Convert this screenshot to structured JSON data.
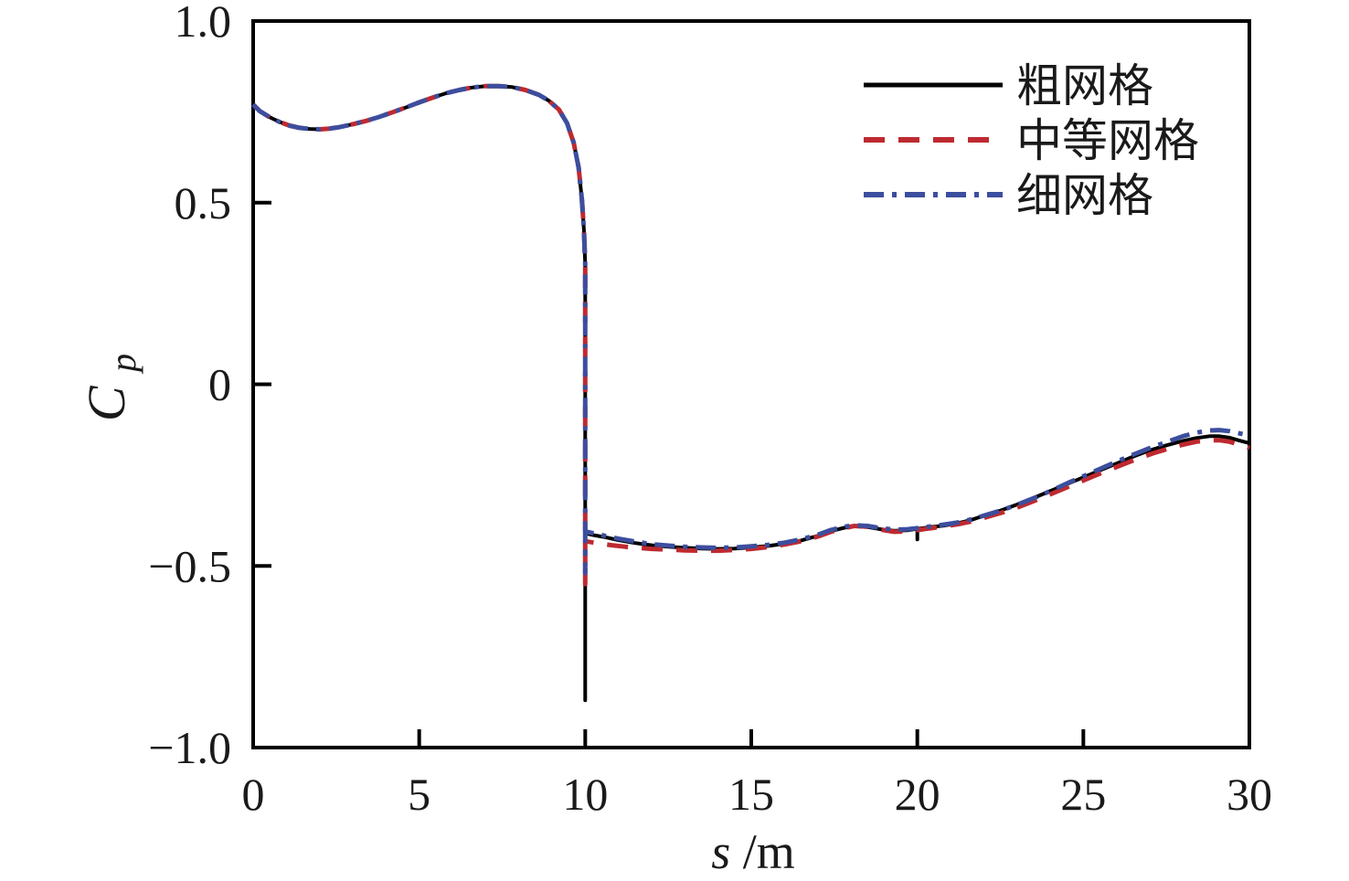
{
  "figure": {
    "background": "#ffffff",
    "frame_color": "#000000"
  },
  "chart_data": {
    "type": "line",
    "title": "",
    "xlabel": {
      "italic": "s",
      "rest": "/m"
    },
    "ylabel": {
      "main": "C",
      "sub": "p"
    },
    "xlim": [
      0,
      30
    ],
    "ylim": [
      -1.0,
      1.0
    ],
    "grid": false,
    "x_ticks": [
      {
        "v": 0,
        "label": "0"
      },
      {
        "v": 5,
        "label": "5"
      },
      {
        "v": 10,
        "label": "10"
      },
      {
        "v": 15,
        "label": "15"
      },
      {
        "v": 20,
        "label": "20"
      },
      {
        "v": 25,
        "label": "25"
      },
      {
        "v": 30,
        "label": "30"
      }
    ],
    "y_ticks": [
      {
        "v": 1.0,
        "label": "1.0"
      },
      {
        "v": 0.5,
        "label": "0.5"
      },
      {
        "v": 0,
        "label": "0"
      },
      {
        "v": -0.5,
        "label": "−0.5"
      },
      {
        "v": -1.0,
        "label": "−1.0"
      }
    ],
    "legend": {
      "position": "top-right"
    },
    "series": [
      {
        "key": "coarse-grid",
        "name": "粗网格",
        "color": "#000000",
        "style": "solid",
        "width": 4,
        "dash": null,
        "points": [
          [
            0,
            0.77
          ],
          [
            0.2,
            0.752
          ],
          [
            0.5,
            0.735
          ],
          [
            0.8,
            0.722
          ],
          [
            1.1,
            0.712
          ],
          [
            1.4,
            0.706
          ],
          [
            1.7,
            0.703
          ],
          [
            2.0,
            0.702
          ],
          [
            2.3,
            0.704
          ],
          [
            2.6,
            0.708
          ],
          [
            3.0,
            0.716
          ],
          [
            3.4,
            0.725
          ],
          [
            3.8,
            0.736
          ],
          [
            4.2,
            0.749
          ],
          [
            4.6,
            0.762
          ],
          [
            5.0,
            0.776
          ],
          [
            5.4,
            0.789
          ],
          [
            5.8,
            0.801
          ],
          [
            6.2,
            0.81
          ],
          [
            6.6,
            0.817
          ],
          [
            7.0,
            0.821
          ],
          [
            7.4,
            0.821
          ],
          [
            7.8,
            0.818
          ],
          [
            8.2,
            0.81
          ],
          [
            8.6,
            0.797
          ],
          [
            8.9,
            0.781
          ],
          [
            9.2,
            0.757
          ],
          [
            9.45,
            0.719
          ],
          [
            9.65,
            0.666
          ],
          [
            9.8,
            0.597
          ],
          [
            9.9,
            0.508
          ],
          [
            9.96,
            0.425
          ],
          [
            10.0,
            0.33
          ],
          [
            10.0,
            -0.87
          ],
          [
            10.0,
            -0.41
          ],
          [
            10.3,
            -0.416
          ],
          [
            10.6,
            -0.421
          ],
          [
            11.0,
            -0.429
          ],
          [
            11.5,
            -0.437
          ],
          [
            12.0,
            -0.443
          ],
          [
            12.5,
            -0.447
          ],
          [
            13.0,
            -0.45
          ],
          [
            13.5,
            -0.452
          ],
          [
            14.0,
            -0.453
          ],
          [
            14.5,
            -0.452
          ],
          [
            15.0,
            -0.449
          ],
          [
            15.5,
            -0.445
          ],
          [
            16.0,
            -0.439
          ],
          [
            16.5,
            -0.43
          ],
          [
            17.0,
            -0.417
          ],
          [
            17.4,
            -0.404
          ],
          [
            17.8,
            -0.395
          ],
          [
            18.1,
            -0.391
          ],
          [
            18.5,
            -0.393
          ],
          [
            18.9,
            -0.399
          ],
          [
            19.3,
            -0.403
          ],
          [
            19.7,
            -0.402
          ],
          [
            20.0,
            -0.398
          ],
          [
            20.0,
            -0.427
          ],
          [
            20.0,
            -0.398
          ],
          [
            20.4,
            -0.393
          ],
          [
            20.8,
            -0.389
          ],
          [
            21.2,
            -0.383
          ],
          [
            21.6,
            -0.374
          ],
          [
            22.0,
            -0.362
          ],
          [
            22.5,
            -0.348
          ],
          [
            23.0,
            -0.331
          ],
          [
            23.5,
            -0.313
          ],
          [
            24.0,
            -0.294
          ],
          [
            24.5,
            -0.275
          ],
          [
            25.0,
            -0.256
          ],
          [
            25.5,
            -0.237
          ],
          [
            26.0,
            -0.218
          ],
          [
            26.5,
            -0.199
          ],
          [
            27.0,
            -0.182
          ],
          [
            27.5,
            -0.168
          ],
          [
            28.0,
            -0.156
          ],
          [
            28.4,
            -0.148
          ],
          [
            28.8,
            -0.143
          ],
          [
            29.1,
            -0.143
          ],
          [
            29.4,
            -0.147
          ],
          [
            29.7,
            -0.155
          ],
          [
            30.0,
            -0.162
          ]
        ]
      },
      {
        "key": "medium-grid",
        "name": "中等网格",
        "color": "#be2a30",
        "style": "dashed",
        "width": 5,
        "dash": [
          23,
          15
        ],
        "points": [
          [
            0,
            0.77
          ],
          [
            0.2,
            0.752
          ],
          [
            0.5,
            0.735
          ],
          [
            0.8,
            0.722
          ],
          [
            1.1,
            0.712
          ],
          [
            1.4,
            0.706
          ],
          [
            1.7,
            0.703
          ],
          [
            2.0,
            0.702
          ],
          [
            2.3,
            0.704
          ],
          [
            2.6,
            0.708
          ],
          [
            3.0,
            0.716
          ],
          [
            3.4,
            0.725
          ],
          [
            3.8,
            0.736
          ],
          [
            4.2,
            0.749
          ],
          [
            4.6,
            0.762
          ],
          [
            5.0,
            0.776
          ],
          [
            5.4,
            0.789
          ],
          [
            5.8,
            0.801
          ],
          [
            6.2,
            0.81
          ],
          [
            6.6,
            0.817
          ],
          [
            7.0,
            0.821
          ],
          [
            7.4,
            0.821
          ],
          [
            7.8,
            0.818
          ],
          [
            8.2,
            0.81
          ],
          [
            8.6,
            0.797
          ],
          [
            8.9,
            0.781
          ],
          [
            9.2,
            0.757
          ],
          [
            9.45,
            0.719
          ],
          [
            9.65,
            0.666
          ],
          [
            9.8,
            0.597
          ],
          [
            9.9,
            0.508
          ],
          [
            9.96,
            0.425
          ],
          [
            10.0,
            0.33
          ],
          [
            10.0,
            -0.55
          ],
          [
            10.0,
            -0.432
          ],
          [
            10.4,
            -0.438
          ],
          [
            10.8,
            -0.443
          ],
          [
            11.2,
            -0.447
          ],
          [
            11.6,
            -0.45
          ],
          [
            12.0,
            -0.453
          ],
          [
            12.5,
            -0.455
          ],
          [
            13.0,
            -0.457
          ],
          [
            13.5,
            -0.458
          ],
          [
            14.0,
            -0.458
          ],
          [
            14.5,
            -0.456
          ],
          [
            15.0,
            -0.453
          ],
          [
            15.5,
            -0.448
          ],
          [
            16.0,
            -0.441
          ],
          [
            16.5,
            -0.432
          ],
          [
            17.0,
            -0.419
          ],
          [
            17.4,
            -0.406
          ],
          [
            17.8,
            -0.396
          ],
          [
            18.1,
            -0.39
          ],
          [
            18.5,
            -0.392
          ],
          [
            18.9,
            -0.4
          ],
          [
            19.3,
            -0.406
          ],
          [
            19.7,
            -0.405
          ],
          [
            20.1,
            -0.4
          ],
          [
            20.5,
            -0.395
          ],
          [
            20.9,
            -0.39
          ],
          [
            21.3,
            -0.384
          ],
          [
            21.7,
            -0.376
          ],
          [
            22.1,
            -0.365
          ],
          [
            22.6,
            -0.352
          ],
          [
            23.1,
            -0.336
          ],
          [
            23.6,
            -0.318
          ],
          [
            24.1,
            -0.299
          ],
          [
            24.6,
            -0.28
          ],
          [
            25.1,
            -0.261
          ],
          [
            25.6,
            -0.242
          ],
          [
            26.1,
            -0.224
          ],
          [
            26.6,
            -0.206
          ],
          [
            27.1,
            -0.19
          ],
          [
            27.6,
            -0.176
          ],
          [
            28.0,
            -0.166
          ],
          [
            28.4,
            -0.158
          ],
          [
            28.8,
            -0.154
          ],
          [
            29.1,
            -0.154
          ],
          [
            29.4,
            -0.158
          ],
          [
            29.7,
            -0.166
          ],
          [
            30.0,
            -0.175
          ]
        ]
      },
      {
        "key": "fine-grid",
        "name": "细网格",
        "color": "#3c4e9e",
        "style": "dashdot",
        "width": 5,
        "dash": [
          22,
          9,
          5,
          9
        ],
        "points": [
          [
            0,
            0.77
          ],
          [
            0.2,
            0.752
          ],
          [
            0.5,
            0.735
          ],
          [
            0.8,
            0.722
          ],
          [
            1.1,
            0.712
          ],
          [
            1.4,
            0.706
          ],
          [
            1.7,
            0.703
          ],
          [
            2.0,
            0.702
          ],
          [
            2.3,
            0.704
          ],
          [
            2.6,
            0.708
          ],
          [
            3.0,
            0.716
          ],
          [
            3.4,
            0.725
          ],
          [
            3.8,
            0.736
          ],
          [
            4.2,
            0.749
          ],
          [
            4.6,
            0.762
          ],
          [
            5.0,
            0.776
          ],
          [
            5.4,
            0.789
          ],
          [
            5.8,
            0.801
          ],
          [
            6.2,
            0.81
          ],
          [
            6.6,
            0.817
          ],
          [
            7.0,
            0.821
          ],
          [
            7.4,
            0.821
          ],
          [
            7.8,
            0.818
          ],
          [
            8.2,
            0.81
          ],
          [
            8.6,
            0.797
          ],
          [
            8.9,
            0.781
          ],
          [
            9.2,
            0.757
          ],
          [
            9.45,
            0.719
          ],
          [
            9.65,
            0.666
          ],
          [
            9.8,
            0.597
          ],
          [
            9.9,
            0.508
          ],
          [
            9.96,
            0.425
          ],
          [
            10.0,
            0.33
          ],
          [
            10.0,
            -0.52
          ],
          [
            10.0,
            -0.405
          ],
          [
            10.3,
            -0.411
          ],
          [
            10.6,
            -0.417
          ],
          [
            11.0,
            -0.425
          ],
          [
            11.5,
            -0.433
          ],
          [
            12.0,
            -0.44
          ],
          [
            12.5,
            -0.444
          ],
          [
            13.0,
            -0.447
          ],
          [
            13.5,
            -0.449
          ],
          [
            14.0,
            -0.45
          ],
          [
            14.5,
            -0.449
          ],
          [
            15.0,
            -0.446
          ],
          [
            15.5,
            -0.442
          ],
          [
            16.0,
            -0.436
          ],
          [
            16.5,
            -0.427
          ],
          [
            17.0,
            -0.414
          ],
          [
            17.4,
            -0.401
          ],
          [
            17.8,
            -0.392
          ],
          [
            18.1,
            -0.388
          ],
          [
            18.5,
            -0.39
          ],
          [
            18.9,
            -0.396
          ],
          [
            19.3,
            -0.4
          ],
          [
            19.7,
            -0.399
          ],
          [
            20.1,
            -0.395
          ],
          [
            20.5,
            -0.39
          ],
          [
            20.9,
            -0.385
          ],
          [
            21.3,
            -0.379
          ],
          [
            21.7,
            -0.37
          ],
          [
            22.1,
            -0.359
          ],
          [
            22.6,
            -0.345
          ],
          [
            23.1,
            -0.328
          ],
          [
            23.6,
            -0.31
          ],
          [
            24.1,
            -0.29
          ],
          [
            24.6,
            -0.269
          ],
          [
            25.1,
            -0.249
          ],
          [
            25.6,
            -0.229
          ],
          [
            26.1,
            -0.209
          ],
          [
            26.6,
            -0.19
          ],
          [
            27.1,
            -0.172
          ],
          [
            27.6,
            -0.156
          ],
          [
            28.0,
            -0.143
          ],
          [
            28.4,
            -0.133
          ],
          [
            28.8,
            -0.127
          ],
          [
            29.1,
            -0.126
          ],
          [
            29.4,
            -0.129
          ],
          [
            29.7,
            -0.135
          ],
          [
            30.0,
            -0.141
          ]
        ]
      }
    ]
  }
}
